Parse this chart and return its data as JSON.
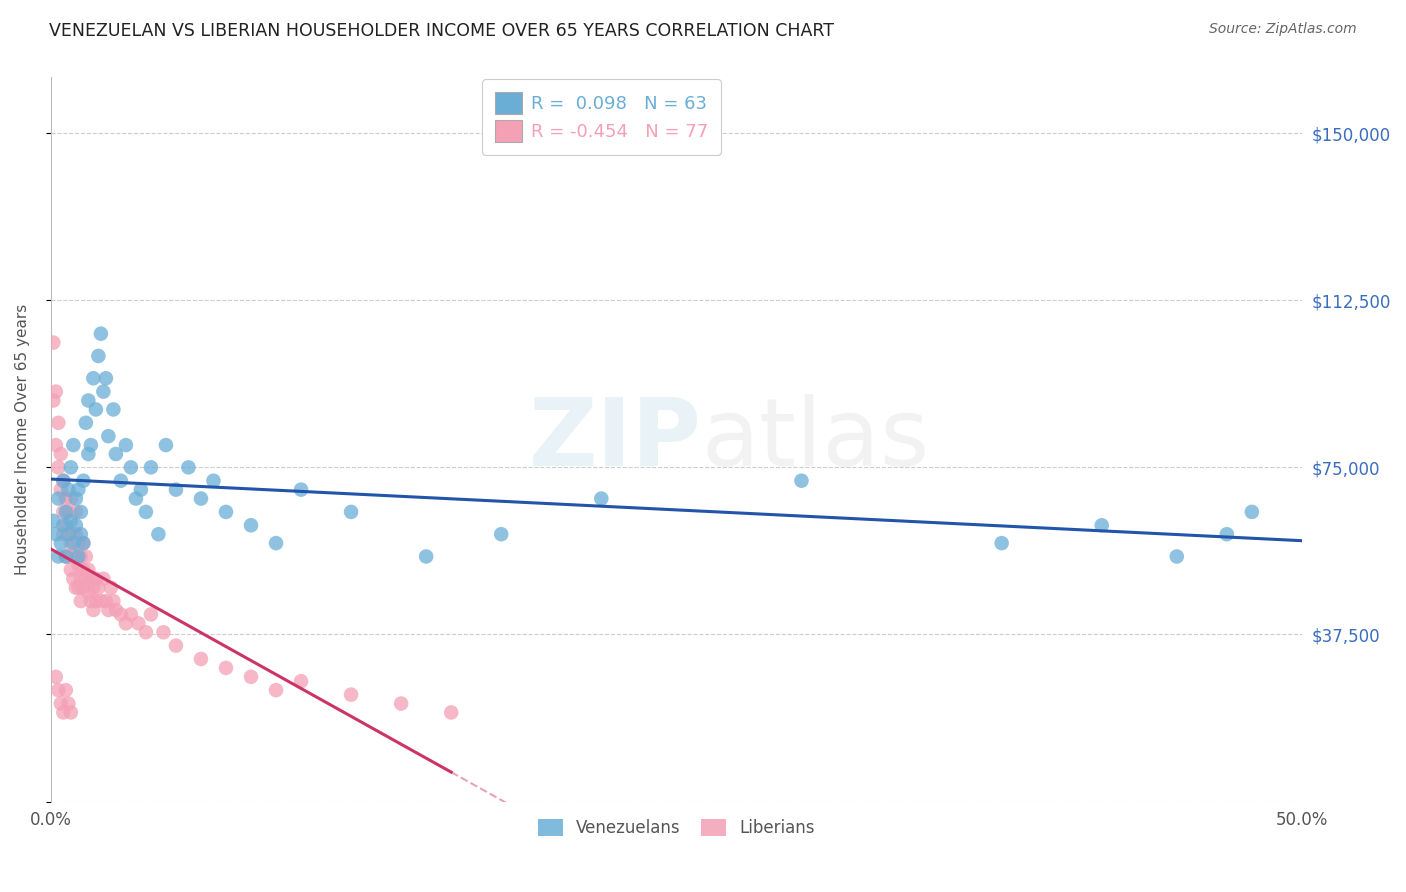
{
  "title": "VENEZUELAN VS LIBERIAN HOUSEHOLDER INCOME OVER 65 YEARS CORRELATION CHART",
  "source": "Source: ZipAtlas.com",
  "ylabel": "Householder Income Over 65 years",
  "xlim": [
    0.0,
    0.5
  ],
  "ylim": [
    0,
    162500
  ],
  "xticks": [
    0.0,
    0.1,
    0.2,
    0.3,
    0.4,
    0.5
  ],
  "xticklabels": [
    "0.0%",
    "",
    "",
    "",
    "",
    "50.0%"
  ],
  "ytick_positions": [
    0,
    37500,
    75000,
    112500,
    150000
  ],
  "ytick_labels": [
    "",
    "$37,500",
    "$75,000",
    "$112,500",
    "$150,000"
  ],
  "legend_entries": [
    {
      "label": "R =  0.098   N = 63",
      "color": "#6aaed6"
    },
    {
      "label": "R = -0.454   N = 77",
      "color": "#f4a0b5"
    }
  ],
  "legend_labels_bottom": [
    "Venezuelans",
    "Liberians"
  ],
  "venezuelan_color": "#6aaed6",
  "liberian_color": "#f4a0b5",
  "line_venezuelan_color": "#2255aa",
  "line_liberian_color": "#cc3366",
  "watermark_zip": "ZIP",
  "watermark_atlas": "atlas",
  "venezuelan_x": [
    0.001,
    0.002,
    0.003,
    0.003,
    0.004,
    0.005,
    0.005,
    0.006,
    0.006,
    0.007,
    0.007,
    0.008,
    0.008,
    0.009,
    0.009,
    0.01,
    0.01,
    0.011,
    0.011,
    0.012,
    0.012,
    0.013,
    0.013,
    0.014,
    0.015,
    0.015,
    0.016,
    0.017,
    0.018,
    0.019,
    0.02,
    0.021,
    0.022,
    0.023,
    0.025,
    0.026,
    0.028,
    0.03,
    0.032,
    0.034,
    0.036,
    0.038,
    0.04,
    0.043,
    0.046,
    0.05,
    0.055,
    0.06,
    0.065,
    0.07,
    0.08,
    0.09,
    0.1,
    0.12,
    0.15,
    0.18,
    0.22,
    0.3,
    0.38,
    0.42,
    0.45,
    0.47,
    0.48
  ],
  "venezuelan_y": [
    63000,
    60000,
    68000,
    55000,
    58000,
    72000,
    62000,
    65000,
    55000,
    70000,
    60000,
    63000,
    75000,
    58000,
    80000,
    62000,
    68000,
    70000,
    55000,
    60000,
    65000,
    72000,
    58000,
    85000,
    90000,
    78000,
    80000,
    95000,
    88000,
    100000,
    105000,
    92000,
    95000,
    82000,
    88000,
    78000,
    72000,
    80000,
    75000,
    68000,
    70000,
    65000,
    75000,
    60000,
    80000,
    70000,
    75000,
    68000,
    72000,
    65000,
    62000,
    58000,
    70000,
    65000,
    55000,
    60000,
    68000,
    72000,
    58000,
    62000,
    55000,
    60000,
    65000
  ],
  "liberian_x": [
    0.001,
    0.001,
    0.002,
    0.002,
    0.003,
    0.003,
    0.004,
    0.004,
    0.005,
    0.005,
    0.005,
    0.006,
    0.006,
    0.006,
    0.007,
    0.007,
    0.007,
    0.008,
    0.008,
    0.008,
    0.009,
    0.009,
    0.009,
    0.01,
    0.01,
    0.01,
    0.01,
    0.011,
    0.011,
    0.011,
    0.012,
    0.012,
    0.012,
    0.013,
    0.013,
    0.013,
    0.014,
    0.014,
    0.015,
    0.015,
    0.016,
    0.016,
    0.017,
    0.017,
    0.018,
    0.018,
    0.019,
    0.02,
    0.021,
    0.022,
    0.023,
    0.024,
    0.025,
    0.026,
    0.028,
    0.03,
    0.032,
    0.035,
    0.038,
    0.04,
    0.045,
    0.05,
    0.06,
    0.07,
    0.08,
    0.09,
    0.1,
    0.12,
    0.14,
    0.16,
    0.002,
    0.003,
    0.004,
    0.005,
    0.006,
    0.007,
    0.008
  ],
  "liberian_y": [
    103000,
    90000,
    92000,
    80000,
    85000,
    75000,
    78000,
    70000,
    72000,
    65000,
    60000,
    68000,
    62000,
    55000,
    65000,
    60000,
    55000,
    68000,
    58000,
    52000,
    60000,
    55000,
    50000,
    65000,
    60000,
    55000,
    48000,
    58000,
    53000,
    48000,
    55000,
    50000,
    45000,
    58000,
    52000,
    48000,
    55000,
    50000,
    52000,
    47000,
    50000,
    45000,
    48000,
    43000,
    50000,
    45000,
    48000,
    45000,
    50000,
    45000,
    43000,
    48000,
    45000,
    43000,
    42000,
    40000,
    42000,
    40000,
    38000,
    42000,
    38000,
    35000,
    32000,
    30000,
    28000,
    25000,
    27000,
    24000,
    22000,
    20000,
    28000,
    25000,
    22000,
    20000,
    25000,
    22000,
    20000
  ]
}
